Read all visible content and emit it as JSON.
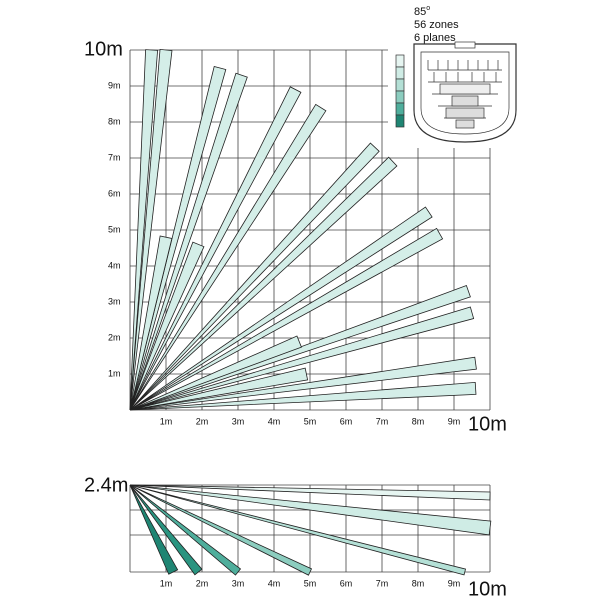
{
  "top_view": {
    "y_end_label": "10m",
    "x_end_label": "10m",
    "y_labels": [
      "1m",
      "2m",
      "3m",
      "4m",
      "5m",
      "6m",
      "7m",
      "8m",
      "9m"
    ],
    "x_labels": [
      "1m",
      "2m",
      "3m",
      "4m",
      "5m",
      "6m",
      "7m",
      "8m",
      "9m"
    ]
  },
  "inset": {
    "angle": "85",
    "angle_unit": "o",
    "zones": "56 zones",
    "planes": "6 planes"
  },
  "side_view": {
    "height_label": "2.4m",
    "x_end_label": "10m",
    "x_labels": [
      "1m",
      "2m",
      "3m",
      "4m",
      "5m",
      "6m",
      "7m",
      "8m",
      "9m"
    ]
  }
}
